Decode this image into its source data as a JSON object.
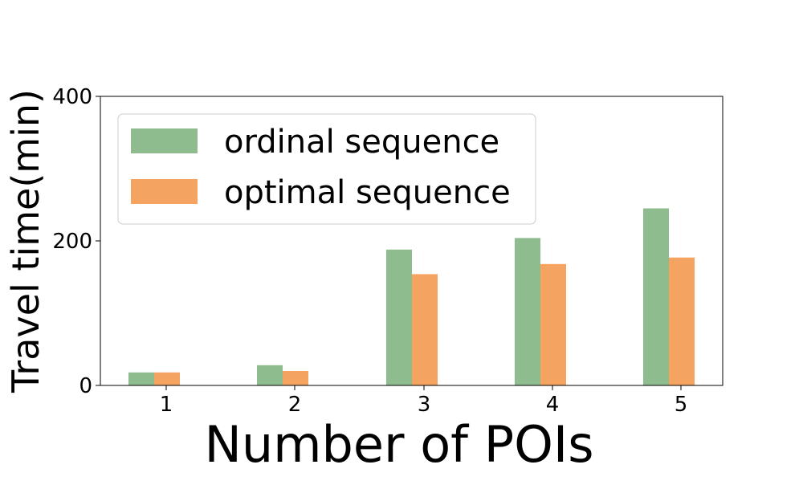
{
  "chart_data": {
    "type": "bar",
    "categories": [
      "1",
      "2",
      "3",
      "4",
      "5"
    ],
    "series": [
      {
        "name": "ordinal sequence",
        "values": [
          18,
          28,
          188,
          204,
          245
        ],
        "color": "#8fbc8f"
      },
      {
        "name": "optimal sequence",
        "values": [
          18,
          20,
          154,
          168,
          177
        ],
        "color": "#f4a460"
      }
    ],
    "xlabel": "Number of POIs",
    "ylabel": "Travel time(min)",
    "ylim": [
      0,
      400
    ],
    "yticks": [
      "0",
      "200",
      "400"
    ],
    "legend_position": "top-left",
    "grid": false
  }
}
